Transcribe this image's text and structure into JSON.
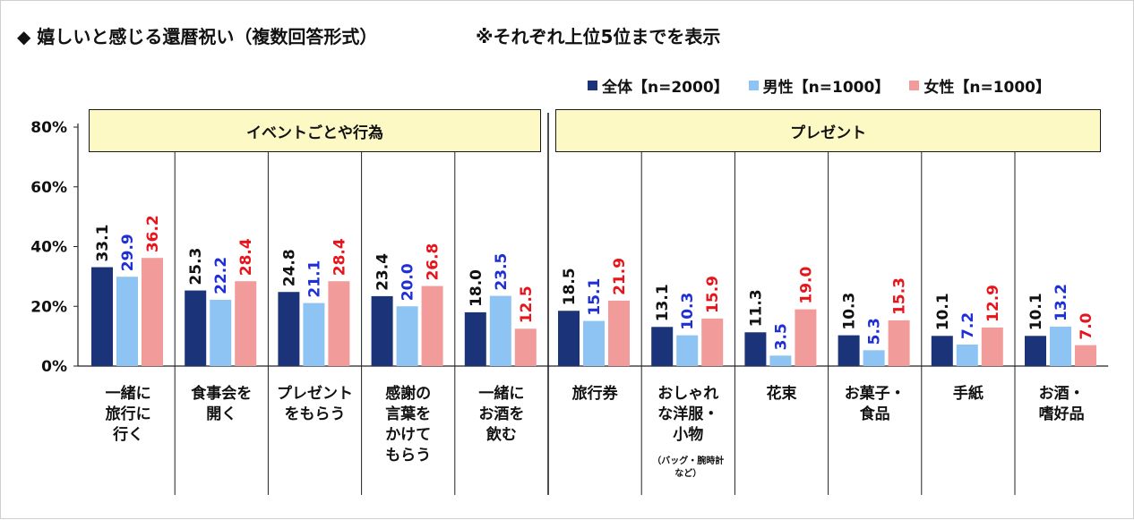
{
  "title": "◆ 嬉しいと感じる還暦祝い（複数回答形式）",
  "note": "※それぞれ上位5位までを表示",
  "chart_data": {
    "type": "bar",
    "ylim": [
      0,
      80
    ],
    "yticks": [
      "0%",
      "20%",
      "40%",
      "60%",
      "80%"
    ],
    "grid": false,
    "legend_position": "top-right",
    "groups": [
      {
        "label": "イベントごとや行為",
        "count": 5
      },
      {
        "label": "プレゼント",
        "count": 6
      }
    ],
    "categories": [
      "一緒に\n旅行に\n行く",
      "食事会を\n開く",
      "プレゼント\nをもらう",
      "感謝の\n言葉を\nかけて\nもらう",
      "一緒に\nお酒を\n飲む",
      "旅行券",
      "おしゃれ\nな洋服・\n小物",
      "花束",
      "お菓子・\n食品",
      "手紙",
      "お酒・\n嗜好品"
    ],
    "category_notes": [
      "",
      "",
      "",
      "",
      "",
      "",
      "（バッグ・腕時計\nなど）",
      "",
      "",
      "",
      ""
    ],
    "series": [
      {
        "name": "全体【n=2000】",
        "color": "#1b3479",
        "label_color": "#111111",
        "values": [
          33.1,
          25.3,
          24.8,
          23.4,
          18.0,
          18.5,
          13.1,
          11.3,
          10.3,
          10.1,
          10.1
        ]
      },
      {
        "name": "男性【n=1000】",
        "color": "#8ec4f3",
        "label_color": "#1f2fd6",
        "values": [
          29.9,
          22.2,
          21.1,
          20.0,
          23.5,
          15.1,
          10.3,
          3.5,
          5.3,
          7.2,
          13.2
        ]
      },
      {
        "name": "女性【n=1000】",
        "color": "#f29b9b",
        "label_color": "#e8141c",
        "values": [
          36.2,
          28.4,
          28.4,
          26.8,
          12.5,
          21.9,
          15.9,
          19.0,
          15.3,
          12.9,
          7.0
        ]
      }
    ]
  }
}
